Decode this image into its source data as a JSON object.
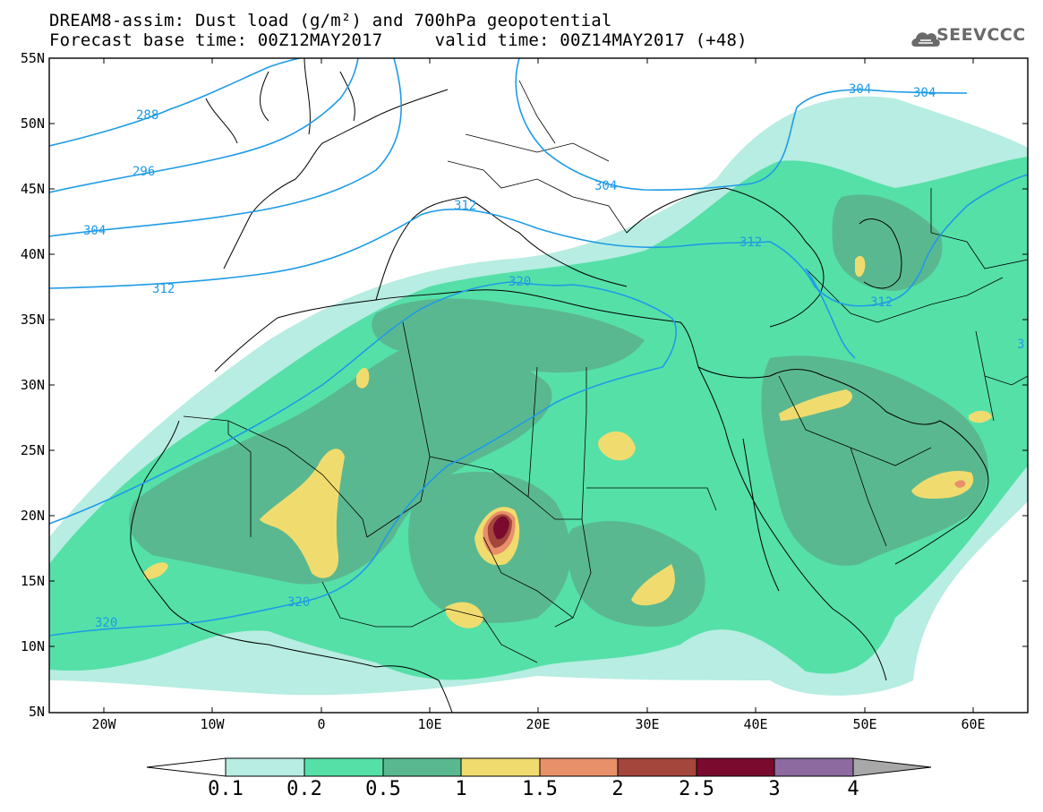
{
  "title_line1": "DREAM8-assim: Dust load (g/m²) and 700hPa geopotential",
  "title_line2": "Forecast base time: 00Z12MAY2017     valid time: 00Z14MAY2017 (+48)",
  "logo": {
    "text": "SEEVCCC",
    "icon": "cloud-icon"
  },
  "lat_labels": [
    "55N",
    "50N",
    "45N",
    "40N",
    "35N",
    "30N",
    "25N",
    "20N",
    "15N",
    "10N",
    "5N"
  ],
  "lon_labels": [
    "20W",
    "10W",
    "0",
    "10E",
    "20E",
    "30E",
    "40E",
    "50E",
    "60E"
  ],
  "contour_labels": [
    "288",
    "296",
    "304",
    "304",
    "304",
    "304",
    "312",
    "312",
    "312",
    "312",
    "320",
    "320",
    "320",
    "3"
  ],
  "colorbar": {
    "labels": [
      "0.1",
      "0.2",
      "0.5",
      "1",
      "1.5",
      "2",
      "2.5",
      "3",
      "4"
    ],
    "colors": [
      "#b7ede2",
      "#55e0a8",
      "#5ab890",
      "#f0dc6e",
      "#e8906a",
      "#a4463c",
      "#7a0b2e",
      "#8d6aa0",
      "#a8a8a8",
      "#ffffff"
    ]
  },
  "palette": {
    "contour": "#1e9be6",
    "coast": "#000000",
    "ocean": "#ffffff"
  }
}
